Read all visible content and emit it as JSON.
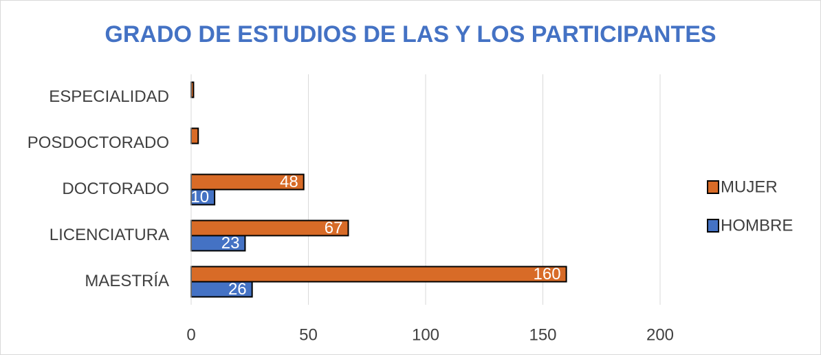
{
  "chart_data": {
    "type": "hbar",
    "title": "GRADO DE ESTUDIOS DE LAS Y LOS PARTICIPANTES",
    "categories": [
      "ESPECIALIDAD",
      "POSDOCTORADO",
      "DOCTORADO",
      "LICENCIATURA",
      "MAESTRÍA"
    ],
    "series": [
      {
        "name": "MUJER",
        "color": "#d86b27",
        "values": [
          1,
          3,
          48,
          67,
          160
        ]
      },
      {
        "name": "HOMBRE",
        "color": "#4472c4",
        "values": [
          0,
          0,
          10,
          23,
          26
        ]
      }
    ],
    "xlim": [
      0,
      200
    ],
    "xticks": [
      0,
      50,
      100,
      150,
      200
    ],
    "grid": true,
    "legend": "right"
  }
}
